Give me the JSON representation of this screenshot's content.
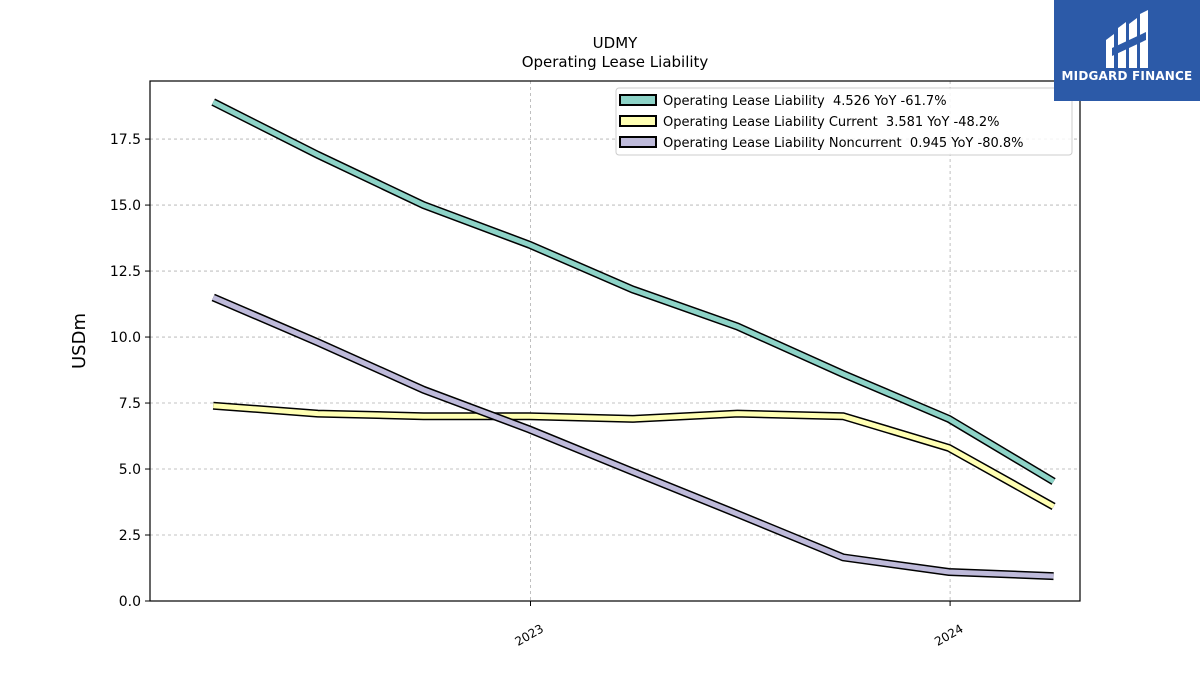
{
  "logo": {
    "text": "MIDGARD FINANCE",
    "color": "#2c5aa8"
  },
  "chart_data": {
    "type": "line",
    "title": "UDMY",
    "subtitle": "Operating Lease Liability",
    "ylabel": "USDm",
    "xlabel": "",
    "ylim": [
      0,
      19.7
    ],
    "yticks": [
      0.0,
      2.5,
      5.0,
      7.5,
      10.0,
      12.5,
      15.0,
      17.5
    ],
    "ytick_labels": [
      "0.0",
      "2.5",
      "5.0",
      "7.5",
      "10.0",
      "12.5",
      "15.0",
      "17.5"
    ],
    "xlim": [
      "2022-02-04",
      "2024-04-23"
    ],
    "xticks": [
      "2023-01-01",
      "2024-01-01"
    ],
    "xtick_labels": [
      "2023",
      "2024"
    ],
    "grid": true,
    "legend_position": "top-right",
    "x": [
      "2022-03-31",
      "2022-06-30",
      "2022-09-30",
      "2022-12-31",
      "2023-03-31",
      "2023-06-30",
      "2023-09-30",
      "2023-12-31",
      "2024-03-31"
    ],
    "series": [
      {
        "name": "Operating Lease Liability  4.526 YoY -61.7%",
        "color": "#8dd3c7",
        "values": [
          18.9,
          16.9,
          15.0,
          13.5,
          11.8,
          10.4,
          8.6,
          6.9,
          4.526
        ]
      },
      {
        "name": "Operating Lease Liability Current  3.581 YoY -48.2%",
        "color": "#ffffb3",
        "values": [
          7.4,
          7.1,
          7.0,
          7.0,
          6.9,
          7.1,
          7.0,
          5.8,
          3.581
        ]
      },
      {
        "name": "Operating Lease Liability Noncurrent  0.945 YoY -80.8%",
        "color": "#bebada",
        "values": [
          11.5,
          9.8,
          8.0,
          6.5,
          4.9,
          3.3,
          1.65,
          1.1,
          0.945
        ]
      }
    ]
  }
}
